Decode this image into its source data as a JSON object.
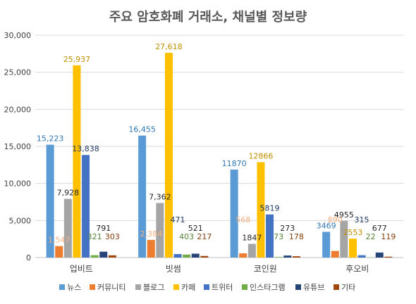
{
  "chart_data": {
    "type": "bar",
    "title": "주요 암호화폐 거래소, 채널별 정보량",
    "categories": [
      "업비트",
      "빗썸",
      "코인원",
      "후오비"
    ],
    "ylim": [
      0,
      30000
    ],
    "yticks": [
      "0",
      "5,000",
      "10,000",
      "15,000",
      "20,000",
      "25,000",
      "30,000"
    ],
    "ytick_values": [
      0,
      5000,
      10000,
      15000,
      20000,
      25000,
      30000
    ],
    "grid": true,
    "legend_position": "bottom",
    "series": [
      {
        "name": "뉴스",
        "color": "#5B9BD5",
        "label_color": "#2E75B6",
        "values": [
          15223,
          16455,
          11870,
          3469
        ],
        "labels": [
          "15,223",
          "16,455",
          "11870",
          "3469"
        ]
      },
      {
        "name": "커뮤니티",
        "color": "#ED7D31",
        "label_color": "#F4B183",
        "values": [
          1547,
          2384,
          568,
          890
        ],
        "labels": [
          "1,547",
          "2,384",
          "568",
          "890"
        ]
      },
      {
        "name": "블로그",
        "color": "#A5A5A5",
        "label_color": "#262626",
        "values": [
          7928,
          7362,
          1847,
          4955
        ],
        "labels": [
          "7,928",
          "7,362",
          "1847",
          "4955"
        ]
      },
      {
        "name": "카페",
        "color": "#FFC000",
        "label_color": "#BF9000",
        "values": [
          25937,
          27618,
          12866,
          2553
        ],
        "labels": [
          "25,937",
          "27,618",
          "12866",
          "2553"
        ]
      },
      {
        "name": "트위터",
        "color": "#4472C4",
        "label_color": "#1F3864",
        "values": [
          13838,
          471,
          5819,
          315
        ],
        "labels": [
          "13,838",
          "471",
          "5819",
          "315"
        ]
      },
      {
        "name": "인스타그램",
        "color": "#70AD47",
        "label_color": "#548235",
        "values": [
          321,
          403,
          73,
          22
        ],
        "labels": [
          "321",
          "403",
          "73",
          "22"
        ]
      },
      {
        "name": "유튜브",
        "color": "#264478",
        "label_color": "#262626",
        "values": [
          791,
          521,
          273,
          677
        ],
        "labels": [
          "791",
          "521",
          "273",
          "677"
        ]
      },
      {
        "name": "기타",
        "color": "#9E480E",
        "label_color": "#843C0C",
        "values": [
          303,
          217,
          178,
          119
        ],
        "labels": [
          "303",
          "217",
          "178",
          "119"
        ]
      }
    ]
  }
}
